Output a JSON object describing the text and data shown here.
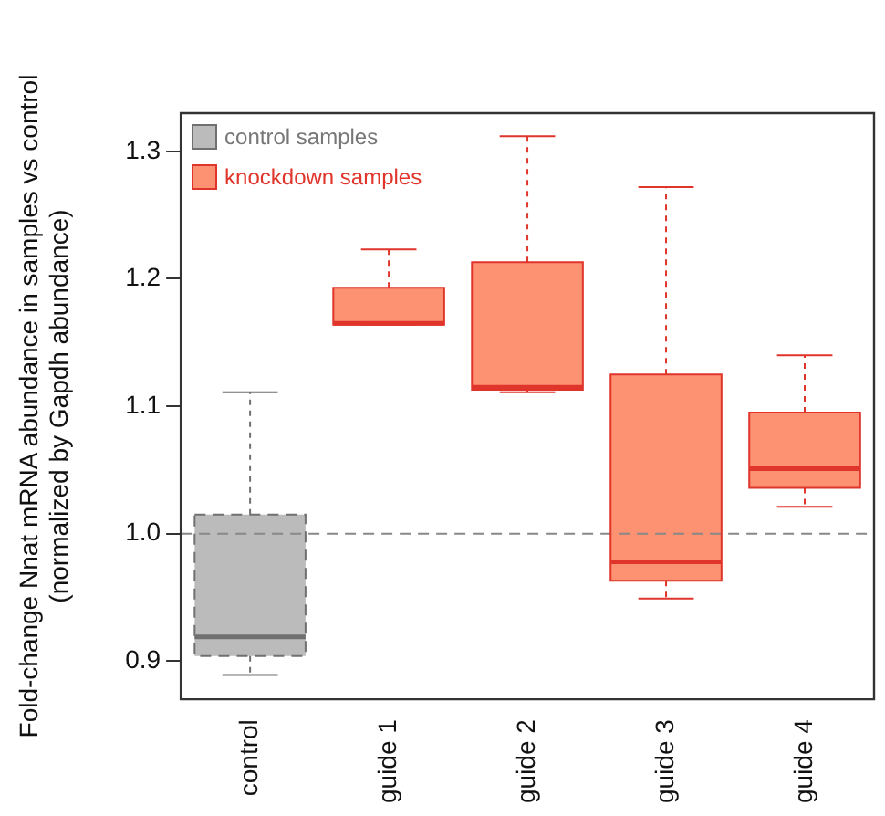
{
  "chart_data": {
    "type": "box",
    "ylabel": "Fold-change Nnat mRNA abundance in samples vs control\n(normalized by Gapdh abundance)",
    "categories": [
      "control",
      "guide 1",
      "guide 2",
      "guide 3",
      "guide 4"
    ],
    "series": [
      {
        "name": "control samples",
        "color": "#bbbbbb",
        "boxes": [
          {
            "low": 0.889,
            "q1": 0.904,
            "median": 0.919,
            "q3": 1.015,
            "high": 1.111
          },
          null,
          null,
          null,
          null
        ]
      },
      {
        "name": "knockdown samples",
        "color": "#fc9272",
        "boxes": [
          null,
          {
            "low": 1.164,
            "q1": 1.164,
            "median": 1.165,
            "q3": 1.193,
            "high": 1.223
          },
          {
            "low": 1.111,
            "q1": 1.113,
            "median": 1.115,
            "q3": 1.213,
            "high": 1.312
          },
          {
            "low": 0.949,
            "q1": 0.963,
            "median": 0.978,
            "q3": 1.125,
            "high": 1.272
          },
          {
            "low": 1.021,
            "q1": 1.036,
            "median": 1.051,
            "q3": 1.095,
            "high": 1.14
          }
        ]
      }
    ],
    "ylim": [
      0.87,
      1.33
    ],
    "yticks": [
      {
        "value": 0.9,
        "label": "0.9"
      },
      {
        "value": 1.0,
        "label": "1.0"
      },
      {
        "value": 1.1,
        "label": "1.1"
      },
      {
        "value": 1.2,
        "label": "1.2"
      },
      {
        "value": 1.3,
        "label": "1.3"
      }
    ],
    "ref_lines": [
      {
        "axis": "y",
        "value": 1.0,
        "color": "#888888",
        "line_style": "dashed"
      }
    ],
    "grid": false,
    "legend": "top left"
  }
}
